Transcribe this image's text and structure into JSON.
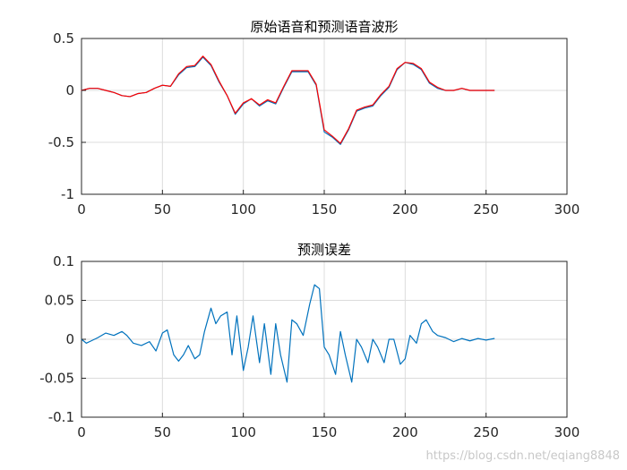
{
  "watermark": "https://blog.csdn.net/eqiang8848",
  "chart_data": [
    {
      "type": "line",
      "title": "原始语音和预测语音波形",
      "xlabel": "",
      "ylabel": "",
      "xlim": [
        0,
        300
      ],
      "ylim": [
        -1,
        0.5
      ],
      "xticks": [
        0,
        50,
        100,
        150,
        200,
        250,
        300
      ],
      "yticks": [
        -1,
        -0.5,
        0,
        0.5
      ],
      "xtick_labels": [
        "0",
        "50",
        "100",
        "150",
        "200",
        "250",
        "300"
      ],
      "ytick_labels": [
        "-1",
        "-0.5",
        "0",
        "0.5"
      ],
      "grid": true,
      "legend": "none",
      "series": [
        {
          "color": "#0072bd",
          "x": [
            0,
            5,
            10,
            15,
            20,
            25,
            30,
            35,
            40,
            45,
            50,
            55,
            60,
            65,
            70,
            75,
            80,
            85,
            90,
            95,
            100,
            105,
            110,
            115,
            120,
            125,
            130,
            135,
            140,
            145,
            150,
            155,
            160,
            165,
            170,
            175,
            180,
            185,
            190,
            195,
            200,
            205,
            210,
            215,
            220,
            225,
            230,
            235,
            240,
            245,
            250,
            255
          ],
          "y": [
            0,
            0.02,
            0.02,
            0,
            -0.02,
            -0.05,
            -0.06,
            -0.03,
            -0.02,
            0.02,
            0.05,
            0.04,
            0.15,
            0.22,
            0.23,
            0.32,
            0.24,
            0.08,
            -0.05,
            -0.23,
            -0.13,
            -0.08,
            -0.15,
            -0.1,
            -0.13,
            0.03,
            0.18,
            0.18,
            0.18,
            0.05,
            -0.4,
            -0.45,
            -0.52,
            -0.38,
            -0.2,
            -0.17,
            -0.15,
            -0.05,
            0.03,
            0.2,
            0.27,
            0.25,
            0.2,
            0.07,
            0.02,
            0,
            0,
            0.02,
            0,
            0,
            0,
            0
          ]
        },
        {
          "color": "#ff0000",
          "x": [
            0,
            5,
            10,
            15,
            20,
            25,
            30,
            35,
            40,
            45,
            50,
            55,
            60,
            65,
            70,
            75,
            80,
            85,
            90,
            95,
            100,
            105,
            110,
            115,
            120,
            125,
            130,
            135,
            140,
            145,
            150,
            155,
            160,
            165,
            170,
            175,
            180,
            185,
            190,
            195,
            200,
            205,
            210,
            215,
            220,
            225,
            230,
            235,
            240,
            245,
            250,
            255
          ],
          "y": [
            0,
            0.02,
            0.02,
            0,
            -0.02,
            -0.05,
            -0.06,
            -0.03,
            -0.02,
            0.02,
            0.05,
            0.04,
            0.16,
            0.23,
            0.24,
            0.33,
            0.25,
            0.09,
            -0.05,
            -0.22,
            -0.12,
            -0.08,
            -0.14,
            -0.09,
            -0.12,
            0.04,
            0.19,
            0.19,
            0.19,
            0.06,
            -0.38,
            -0.44,
            -0.51,
            -0.37,
            -0.19,
            -0.16,
            -0.14,
            -0.04,
            0.04,
            0.21,
            0.27,
            0.26,
            0.21,
            0.08,
            0.03,
            0,
            0,
            0.02,
            0,
            0,
            0,
            0
          ]
        }
      ]
    },
    {
      "type": "line",
      "title": "预测误差",
      "xlabel": "",
      "ylabel": "",
      "xlim": [
        0,
        300
      ],
      "ylim": [
        -0.1,
        0.1
      ],
      "xticks": [
        0,
        50,
        100,
        150,
        200,
        250,
        300
      ],
      "yticks": [
        -0.1,
        -0.05,
        0,
        0.05,
        0.1
      ],
      "xtick_labels": [
        "0",
        "50",
        "100",
        "150",
        "200",
        "250",
        "300"
      ],
      "ytick_labels": [
        "-0.1",
        "-0.05",
        "0",
        "0.05",
        "0.1"
      ],
      "grid": true,
      "legend": "none",
      "series": [
        {
          "color": "#0072bd",
          "x": [
            0,
            3,
            6,
            10,
            15,
            20,
            25,
            28,
            32,
            37,
            42,
            46,
            50,
            53,
            57,
            60,
            63,
            66,
            70,
            73,
            76,
            80,
            83,
            86,
            90,
            93,
            96,
            100,
            103,
            106,
            110,
            113,
            117,
            120,
            123,
            127,
            130,
            133,
            137,
            141,
            144,
            147,
            150,
            153,
            157,
            160,
            163,
            167,
            170,
            173,
            177,
            180,
            183,
            187,
            190,
            193,
            197,
            200,
            203,
            207,
            210,
            213,
            217,
            220,
            225,
            230,
            235,
            240,
            245,
            250,
            255
          ],
          "x_note": "",
          "y": [
            0,
            -0.005,
            -0.002,
            0.002,
            0.008,
            0.005,
            0.01,
            0.005,
            -0.005,
            -0.008,
            -0.003,
            -0.015,
            0.008,
            0.012,
            -0.02,
            -0.028,
            -0.02,
            -0.008,
            -0.025,
            -0.02,
            0.01,
            0.04,
            0.02,
            0.03,
            0.035,
            -0.02,
            0.03,
            -0.04,
            -0.01,
            0.03,
            -0.03,
            0.02,
            -0.045,
            0.02,
            -0.02,
            -0.055,
            0.025,
            0.02,
            0.005,
            0.045,
            0.07,
            0.065,
            -0.01,
            -0.02,
            -0.045,
            0.01,
            -0.02,
            -0.055,
            0,
            -0.01,
            -0.03,
            0,
            -0.01,
            -0.03,
            0,
            0,
            -0.032,
            -0.025,
            0.005,
            -0.005,
            0.02,
            0.025,
            0.01,
            0.005,
            0.002,
            -0.003,
            0.001,
            -0.002,
            0.001,
            -0.001,
            0.001
          ]
        }
      ]
    }
  ]
}
